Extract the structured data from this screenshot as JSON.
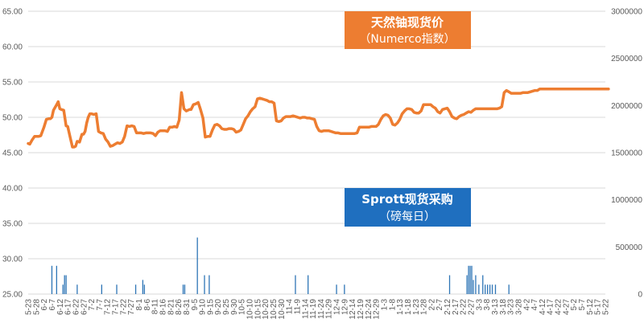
{
  "colors": {
    "price_line": "#ED7D31",
    "purchase_bars": "#2E75B6",
    "price_box": "#ED7D31",
    "purchase_box": "#1F6FBF",
    "grid": "#D9D9D9",
    "tick_text": "#595959"
  },
  "chart_data": {
    "type": "line",
    "left_axis": {
      "ticks": [
        "25.00",
        "30.00",
        "35.00",
        "40.00",
        "45.00",
        "50.00",
        "55.00",
        "60.00",
        "65.00"
      ],
      "ylim": [
        25,
        65
      ]
    },
    "right_axis": {
      "ticks": [
        "0",
        "500000",
        "1000000",
        "1500000",
        "2000000",
        "2500000",
        "3000000"
      ],
      "ylim": [
        0,
        3000000
      ]
    },
    "x_labels": [
      "5-23",
      "5-28",
      "6-2",
      "6-7",
      "6-12",
      "6-17",
      "6-22",
      "6-27",
      "7-2",
      "7-7",
      "7-12",
      "7-17",
      "7-22",
      "7-27",
      "8-1",
      "8-6",
      "8-11",
      "8-16",
      "8-21",
      "8-26",
      "8-31",
      "9-5",
      "9-10",
      "9-15",
      "9-20",
      "9-25",
      "9-30",
      "10-5",
      "10-10",
      "10-15",
      "10-20",
      "10-25",
      "10-30",
      "11-4",
      "11-9",
      "11-14",
      "11-19",
      "11-24",
      "11-29",
      "12-4",
      "12-9",
      "12-14",
      "12-19",
      "12-24",
      "12-29",
      "1-3",
      "1-8",
      "1-13",
      "1-18",
      "1-23",
      "1-28",
      "2-2",
      "2-7",
      "2-12",
      "2-17",
      "2-22",
      "2-27",
      "3-3",
      "3-8",
      "3-13",
      "3-18",
      "3-23",
      "3-28",
      "4-2",
      "4-7",
      "4-12",
      "4-17",
      "4-22",
      "4-27",
      "5-2",
      "5-7",
      "5-12",
      "5-17",
      "5-22"
    ],
    "series": [
      {
        "name": "天然铀现货价",
        "subtitle": "（Numerco指数）",
        "axis": "left",
        "x": [
          0,
          0.2,
          0.5,
          0.8,
          1.0,
          1.3,
          1.6,
          2.0,
          2.3,
          2.6,
          2.8,
          3.0,
          3.2,
          3.4,
          3.6,
          3.8,
          4.0,
          4.2,
          4.5,
          4.8,
          5.0,
          5.3,
          5.6,
          5.8,
          6.0,
          6.2,
          6.5,
          6.8,
          7.0,
          7.2,
          7.4,
          7.6,
          7.8,
          8.0,
          8.3,
          8.6,
          8.9,
          9.2,
          9.5,
          9.8,
          10.1,
          10.4,
          10.7,
          11.0,
          11.3,
          11.6,
          11.9,
          12.2,
          12.5,
          12.8,
          13.1,
          13.4,
          13.7,
          14.0,
          14.3,
          14.6,
          14.9,
          15.2,
          15.5,
          15.8,
          16.1,
          16.4,
          16.7,
          17.0,
          17.3,
          17.6,
          17.9,
          18.2,
          18.5,
          18.8,
          19.1,
          19.4,
          19.7,
          20.0,
          20.2,
          20.4,
          20.6,
          20.9,
          21.2,
          21.5,
          21.8,
          22.1,
          22.4,
          22.7,
          23.0,
          23.3,
          23.6,
          23.9,
          24.2,
          24.5,
          24.8,
          25.1,
          25.4,
          25.7,
          26.0,
          26.3,
          26.6,
          26.9,
          27.2,
          27.5,
          27.8,
          28.1,
          28.4,
          28.7,
          29.0,
          29.3,
          29.6,
          29.9,
          30.2,
          30.5,
          30.8,
          31.1,
          31.4,
          31.7,
          32.0,
          32.3,
          32.6,
          32.9,
          33.2,
          33.5,
          33.8,
          34.1,
          34.4,
          34.7,
          35.0,
          35.3,
          35.6,
          35.9,
          36.2,
          36.5,
          36.8,
          37.1,
          37.4,
          37.7,
          38.0,
          38.3,
          38.6,
          38.9,
          39.2,
          39.5,
          39.8,
          40.1,
          40.4,
          40.7,
          41.0,
          41.3,
          41.6,
          41.9,
          42.2,
          42.5,
          42.8,
          43.1,
          43.4,
          43.7,
          44.0,
          44.3,
          44.6,
          44.9,
          45.2,
          45.5,
          45.8,
          46.1,
          46.4,
          46.7,
          47.0,
          47.3,
          47.6,
          47.9,
          48.2,
          48.5,
          48.8,
          49.1,
          49.4,
          49.7,
          50.0,
          50.3,
          50.6,
          50.9,
          51.2,
          51.5,
          51.8,
          52.1,
          52.4,
          52.7,
          53.0,
          53.3,
          53.6,
          53.9,
          54.2,
          54.5,
          54.8,
          55.1,
          55.4,
          55.7,
          56.0,
          56.3,
          56.6,
          56.9,
          57.2,
          57.5,
          57.8,
          58.1,
          58.4,
          58.7,
          59.0,
          59.3,
          59.6,
          59.9,
          60.2,
          60.5,
          60.8,
          61.1,
          61.4,
          61.7,
          62.0,
          62.3,
          62.6,
          62.9,
          63.2,
          63.5,
          63.8,
          64.1,
          64.4,
          64.7,
          65.0,
          65.3,
          65.6,
          65.9,
          66.2,
          66.5,
          66.8,
          67.1,
          67.4,
          67.7,
          68.0,
          68.3,
          68.6,
          68.9,
          69.2,
          69.5,
          69.8,
          70.1,
          70.4,
          70.7,
          71.0,
          71.3,
          71.6,
          71.9,
          72.2,
          72.5,
          72.8,
          73.1,
          73.4
        ],
        "values": [
          46.3,
          46.2,
          46.8,
          47.3,
          47.3,
          47.3,
          47.4,
          48.6,
          49.7,
          49.8,
          49.8,
          50.0,
          51.0,
          51.4,
          51.8,
          52.2,
          51.2,
          51.1,
          51.0,
          48.8,
          48.7,
          47.2,
          45.8,
          45.8,
          45.9,
          46.6,
          46.5,
          47.6,
          47.6,
          48.0,
          49.2,
          50.0,
          50.5,
          50.5,
          50.4,
          50.5,
          48.0,
          47.8,
          47.7,
          46.9,
          46.5,
          45.9,
          46.0,
          46.2,
          46.4,
          46.3,
          46.5,
          47.3,
          48.8,
          48.7,
          48.8,
          48.7,
          47.8,
          47.8,
          47.8,
          47.7,
          47.8,
          47.8,
          47.8,
          47.7,
          47.4,
          47.9,
          48.1,
          48.1,
          48.1,
          48.0,
          48.6,
          48.6,
          48.7,
          48.6,
          49.6,
          53.5,
          51.2,
          50.9,
          51.0,
          51.1,
          51.1,
          51.8,
          51.9,
          52.1,
          51.1,
          49.9,
          47.2,
          47.3,
          47.3,
          48.2,
          48.9,
          49.0,
          48.8,
          48.4,
          48.3,
          48.3,
          48.4,
          48.4,
          48.3,
          47.9,
          48.0,
          48.2,
          49.0,
          49.8,
          50.2,
          50.8,
          51.2,
          51.5,
          52.6,
          52.7,
          52.6,
          52.5,
          52.4,
          52.2,
          52.2,
          52.0,
          49.5,
          49.4,
          49.5,
          49.9,
          50.1,
          50.1,
          50.1,
          50.2,
          50.1,
          50.0,
          49.9,
          50.0,
          50.0,
          49.9,
          49.9,
          49.8,
          49.7,
          48.7,
          48.1,
          48.0,
          48.1,
          48.1,
          48.1,
          48.0,
          47.9,
          47.8,
          47.8,
          47.7,
          47.7,
          47.7,
          47.7,
          47.7,
          47.7,
          47.7,
          47.8,
          48.6,
          48.6,
          48.6,
          48.6,
          48.6,
          48.7,
          48.7,
          48.7,
          49.0,
          49.7,
          50.2,
          50.4,
          50.3,
          49.9,
          49.0,
          48.9,
          49.2,
          49.7,
          50.5,
          50.9,
          51.2,
          51.2,
          51.1,
          50.7,
          50.6,
          50.6,
          50.9,
          51.8,
          51.8,
          51.8,
          51.8,
          51.5,
          51.3,
          50.8,
          50.6,
          51.1,
          51.2,
          51.3,
          50.8,
          50.1,
          49.9,
          49.8,
          50.1,
          50.3,
          50.4,
          50.6,
          50.8,
          50.7,
          51.0,
          51.2,
          51.2,
          51.2,
          51.2,
          51.2,
          51.2,
          51.2,
          51.2,
          51.2,
          51.2,
          51.3,
          51.5,
          53.5,
          53.8,
          53.6,
          53.4,
          53.4,
          53.4,
          53.4,
          53.4,
          53.5,
          53.5,
          53.5,
          53.6,
          53.7,
          53.8,
          53.8,
          54.0,
          54.0,
          54.0,
          54.0,
          54.0,
          54.0,
          54.0,
          54.0,
          54.0,
          54.0,
          54.0,
          54.0,
          54.0,
          54.0,
          54.0,
          54.0,
          54.0,
          54.0,
          54.0,
          54.0,
          54.0,
          54.0,
          54.0,
          54.0,
          54.0,
          54.0,
          54.0,
          54.0,
          54.0,
          54.0
        ]
      },
      {
        "name": "Sprott现货采购",
        "subtitle": "（磅每日）",
        "axis": "right",
        "type": "bar",
        "x": [
          3.0,
          3.6,
          4.4,
          4.6,
          4.8,
          6.2,
          9.3,
          11.2,
          13.6,
          14.5,
          14.7,
          19.6,
          19.8,
          21.4,
          22.3,
          22.9,
          33.8,
          35.4,
          39.0,
          40.0,
          53.3,
          55.5,
          55.7,
          55.9,
          56.1,
          56.3,
          56.6,
          57.0,
          57.5,
          57.8,
          58.1,
          58.4,
          58.7,
          59.1,
          60.8
        ],
        "values": [
          300000,
          300000,
          100000,
          200000,
          200000,
          100000,
          100000,
          100000,
          100000,
          150000,
          100000,
          100000,
          100000,
          600000,
          200000,
          200000,
          200000,
          200000,
          100000,
          100000,
          200000,
          200000,
          300000,
          300000,
          300000,
          150000,
          200000,
          100000,
          200000,
          100000,
          100000,
          100000,
          100000,
          100000,
          100000
        ]
      }
    ],
    "grid": true,
    "legend": "inline-boxes"
  }
}
